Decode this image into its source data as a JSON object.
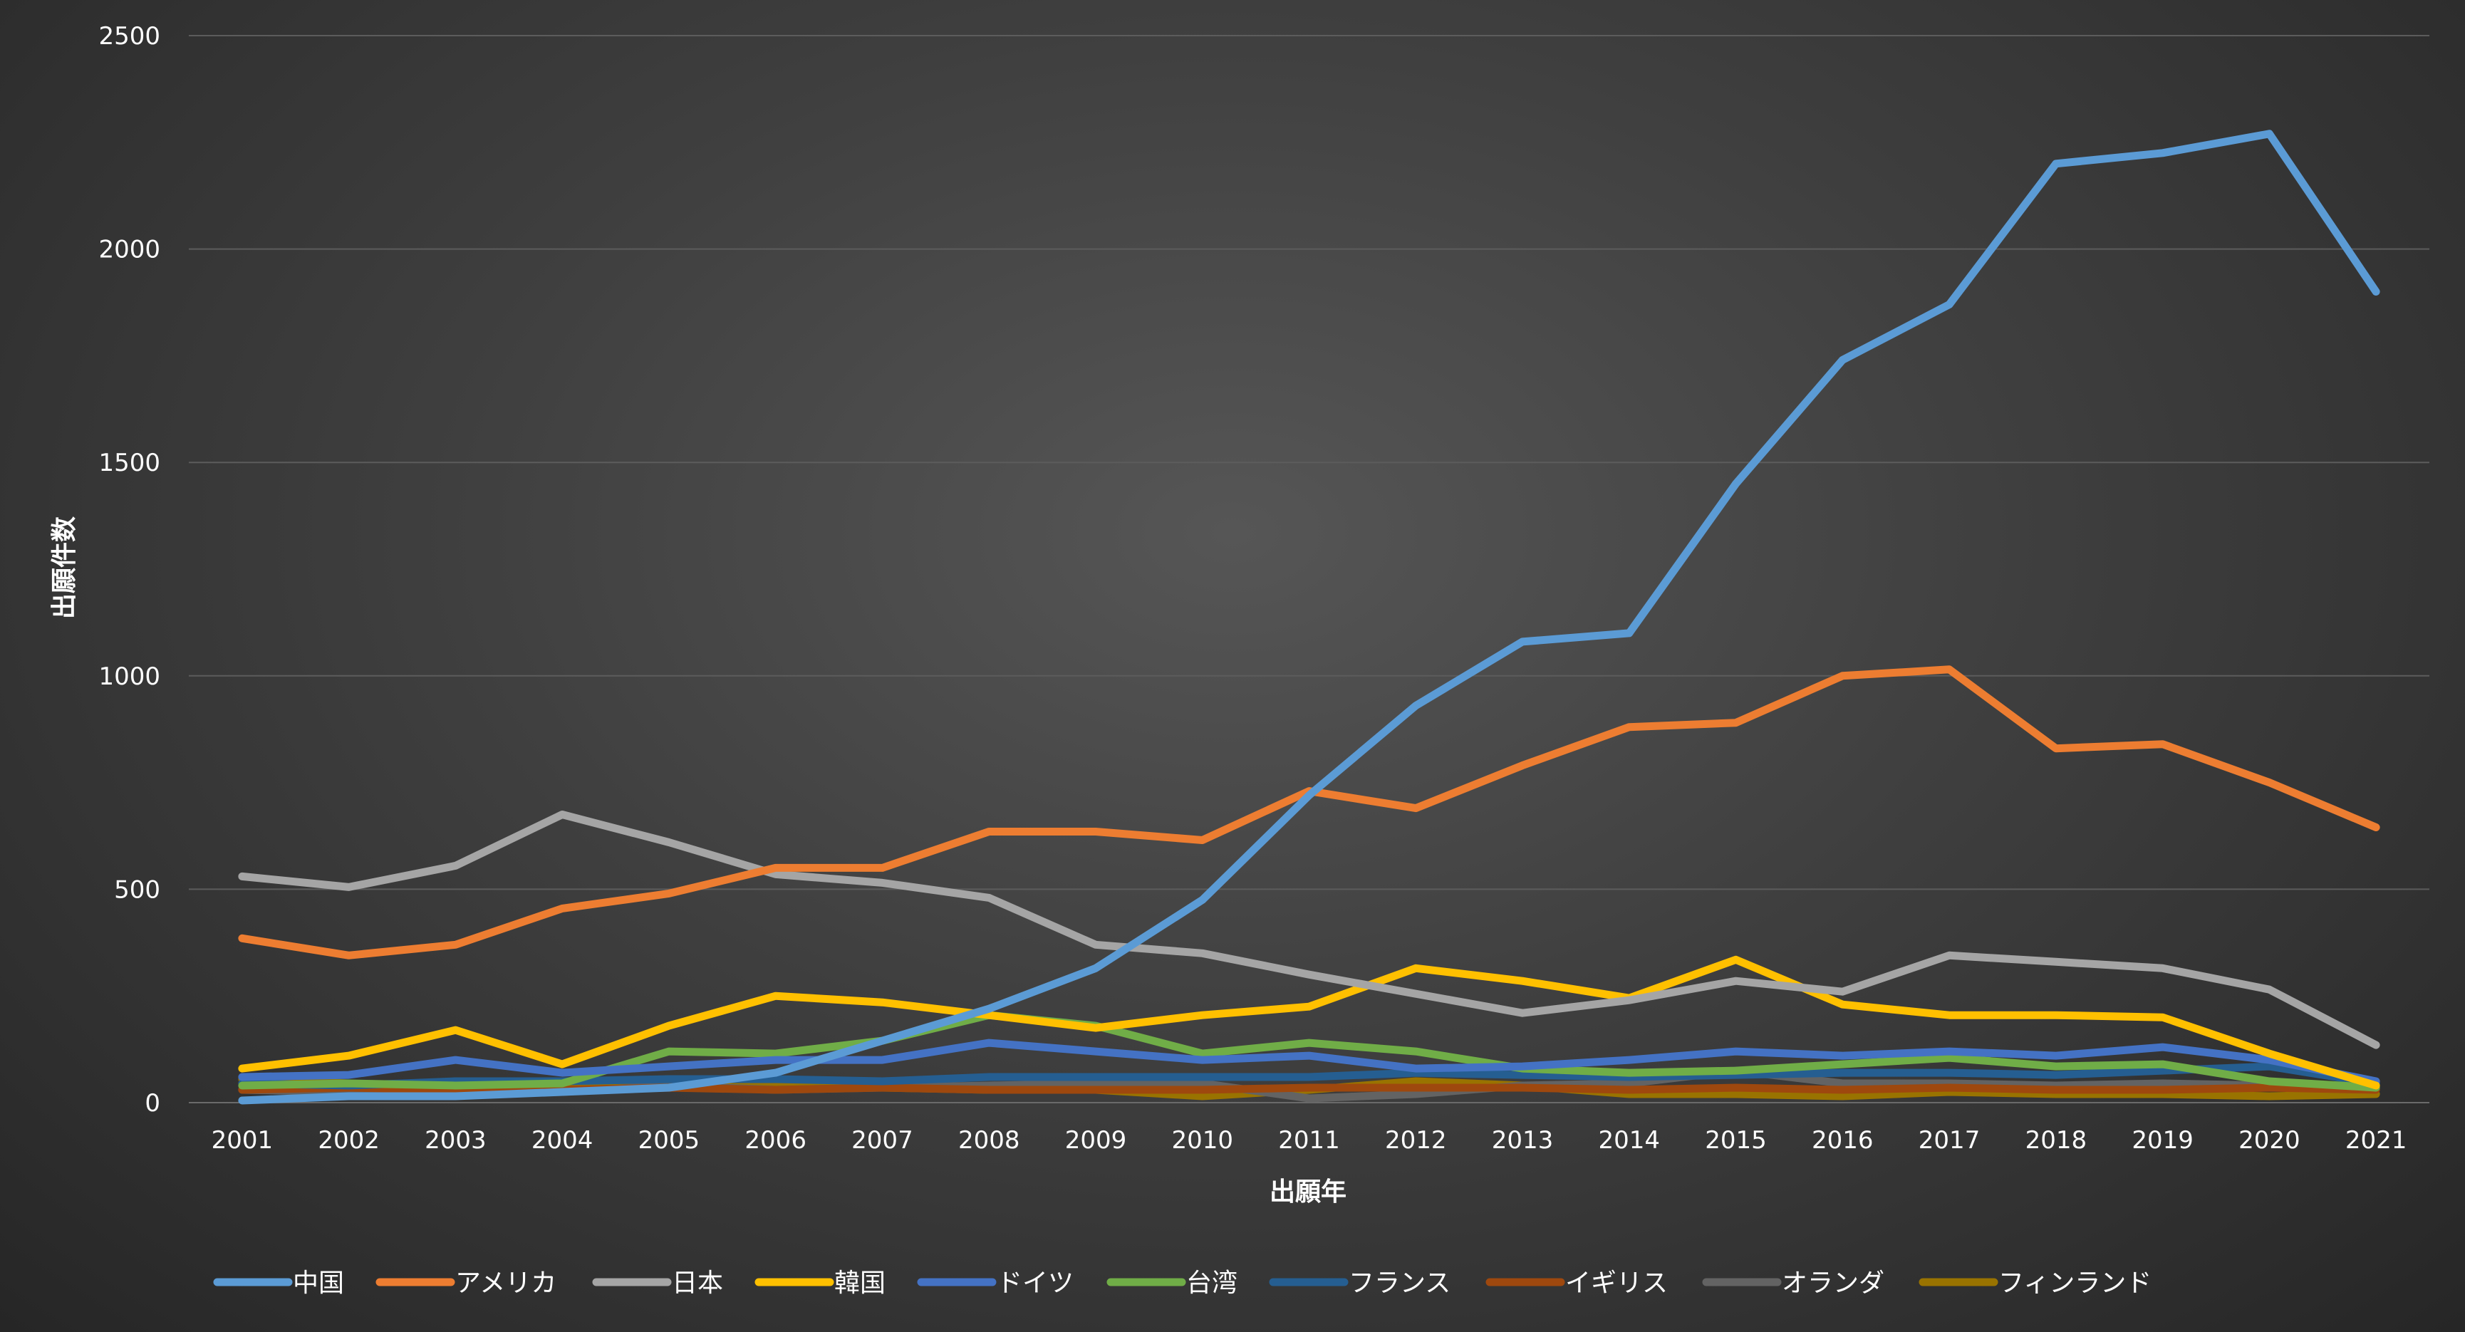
{
  "chart_data": {
    "type": "line",
    "title": "",
    "xlabel": "出願年",
    "ylabel": "出願件数",
    "ylim": [
      0,
      2500
    ],
    "yticks": [
      0,
      500,
      1000,
      1500,
      2000,
      2500
    ],
    "grid": true,
    "legend_position": "bottom",
    "categories": [
      "2001",
      "2002",
      "2003",
      "2004",
      "2005",
      "2006",
      "2007",
      "2008",
      "2009",
      "2010",
      "2011",
      "2012",
      "2013",
      "2014",
      "2015",
      "2016",
      "2017",
      "2018",
      "2019",
      "2020",
      "2021"
    ],
    "series": [
      {
        "name": "中国",
        "color": "#5B9BD5",
        "values": [
          5,
          15,
          15,
          25,
          35,
          70,
          145,
          220,
          315,
          475,
          720,
          930,
          1080,
          1100,
          1450,
          1740,
          1870,
          2200,
          2225,
          2270,
          1900
        ]
      },
      {
        "name": "アメリカ",
        "color": "#ED7D31",
        "values": [
          385,
          345,
          370,
          455,
          490,
          550,
          550,
          635,
          635,
          615,
          730,
          690,
          790,
          880,
          890,
          1000,
          1015,
          830,
          840,
          750,
          645
        ]
      },
      {
        "name": "日本",
        "color": "#A5A5A5",
        "values": [
          530,
          505,
          555,
          675,
          610,
          535,
          515,
          480,
          370,
          350,
          300,
          255,
          210,
          240,
          285,
          260,
          345,
          330,
          315,
          265,
          135
        ]
      },
      {
        "name": "韓国",
        "color": "#FFC000",
        "values": [
          80,
          110,
          170,
          90,
          180,
          250,
          235,
          205,
          175,
          205,
          225,
          315,
          285,
          245,
          335,
          230,
          205,
          205,
          200,
          115,
          40
        ]
      },
      {
        "name": "ドイツ",
        "color": "#4472C4",
        "values": [
          60,
          65,
          100,
          70,
          85,
          100,
          100,
          140,
          120,
          100,
          110,
          80,
          85,
          100,
          120,
          110,
          120,
          110,
          130,
          100,
          50
        ]
      },
      {
        "name": "台湾",
        "color": "#70AD47",
        "values": [
          40,
          45,
          40,
          45,
          120,
          115,
          145,
          205,
          180,
          115,
          140,
          120,
          80,
          70,
          75,
          90,
          105,
          85,
          90,
          50,
          35
        ]
      },
      {
        "name": "フランス",
        "color": "#255E91",
        "values": [
          45,
          40,
          50,
          50,
          55,
          55,
          50,
          60,
          60,
          60,
          60,
          70,
          65,
          60,
          65,
          70,
          70,
          65,
          75,
          85,
          45
        ]
      },
      {
        "name": "イギリス",
        "color": "#9E480E",
        "values": [
          30,
          35,
          30,
          30,
          35,
          30,
          35,
          30,
          30,
          30,
          35,
          35,
          35,
          30,
          35,
          30,
          35,
          30,
          30,
          35,
          30
        ]
      },
      {
        "name": "オランダ",
        "color": "#636363",
        "values": [
          30,
          25,
          20,
          25,
          40,
          30,
          35,
          40,
          45,
          45,
          10,
          20,
          40,
          45,
          75,
          45,
          45,
          40,
          45,
          40,
          35
        ]
      },
      {
        "name": "フィンランド",
        "color": "#997300",
        "values": [
          55,
          45,
          30,
          35,
          55,
          45,
          35,
          30,
          30,
          15,
          30,
          50,
          40,
          20,
          20,
          15,
          25,
          20,
          20,
          15,
          20
        ]
      }
    ]
  }
}
